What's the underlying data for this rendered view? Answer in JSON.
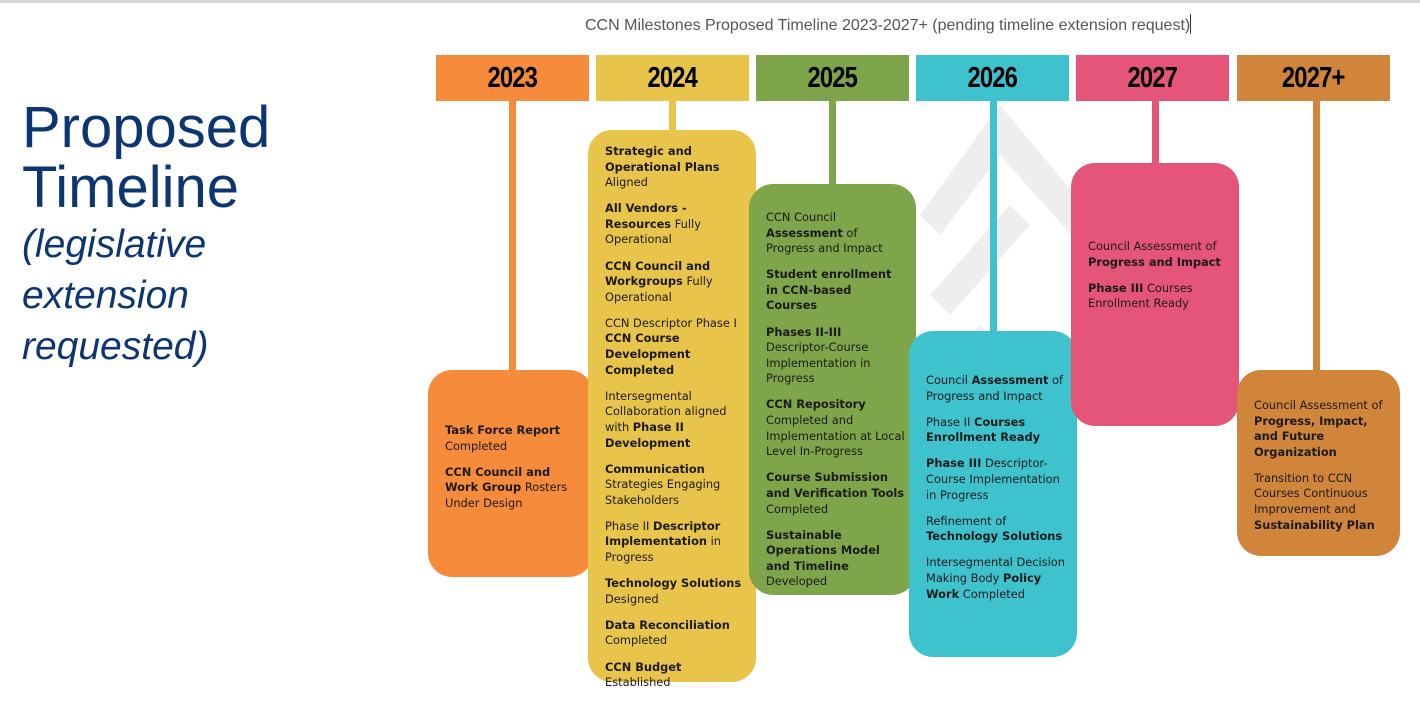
{
  "slide": {
    "title_line1": "Proposed",
    "title_line2": "Timeline",
    "subtitle_line1": "(legislative",
    "subtitle_line2": "extension",
    "subtitle_line3": "requested)",
    "chart_title": "CCN Milestones Proposed Timeline 2023-2027+ (pending timeline extension request)"
  },
  "columns": [
    {
      "year": "2023",
      "color": "#F68B3C",
      "items": [
        [
          {
            "t": "Task Force Report",
            "b": true
          },
          {
            "t": " Completed"
          }
        ],
        [
          {
            "t": "CCN Council and Work Group",
            "b": true
          },
          {
            "t": " Rosters Under Design"
          }
        ]
      ]
    },
    {
      "year": "2024",
      "color": "#E9C44A",
      "items": [
        [
          {
            "t": "Strategic and Operational Plans",
            "b": true
          },
          {
            "t": " Aligned"
          }
        ],
        [
          {
            "t": "All Vendors - Resources",
            "b": true
          },
          {
            "t": " Fully Operational"
          }
        ],
        [
          {
            "t": "CCN Council and Workgroups",
            "b": true
          },
          {
            "t": " Fully Operational"
          }
        ],
        [
          {
            "t": "CCN Descriptor Phase I "
          },
          {
            "t": "CCN Course Development Completed",
            "b": true
          }
        ],
        [
          {
            "t": "Intersegmental Collaboration aligned with "
          },
          {
            "t": "Phase II Development",
            "b": true
          }
        ],
        [
          {
            "t": "Communication",
            "b": true
          },
          {
            "t": " Strategies Engaging Stakeholders"
          }
        ],
        [
          {
            "t": "Phase II "
          },
          {
            "t": "Descriptor Implementation",
            "b": true
          },
          {
            "t": " in Progress"
          }
        ],
        [
          {
            "t": "Technology Solutions",
            "b": true
          },
          {
            "t": " Designed"
          }
        ],
        [
          {
            "t": "Data Reconciliation",
            "b": true
          },
          {
            "t": " Completed"
          }
        ],
        [
          {
            "t": "CCN Budget",
            "b": true
          },
          {
            "t": " Established"
          }
        ]
      ]
    },
    {
      "year": "2025",
      "color": "#7FA54A",
      "items": [
        [
          {
            "t": "CCN Council "
          },
          {
            "t": "Assessment",
            "b": true
          },
          {
            "t": " of Progress and Impact"
          }
        ],
        [
          {
            "t": "Student enrollment in CCN-based Courses",
            "b": true
          }
        ],
        [
          {
            "t": "Phases II-III",
            "b": true
          },
          {
            "t": " Descriptor-Course Implementation  in Progress"
          }
        ],
        [
          {
            "t": "CCN Repository",
            "b": true
          },
          {
            "t": " Completed and Implementation at Local Level In-Progress"
          }
        ],
        [
          {
            "t": "Course Submission and Verification Tools",
            "b": true
          },
          {
            "t": " Completed"
          }
        ],
        [
          {
            "t": "Sustainable Operations Model and Timeline",
            "b": true
          },
          {
            "t": " Developed"
          }
        ]
      ]
    },
    {
      "year": "2026",
      "color": "#3EC3CE",
      "items": [
        [
          {
            "t": "Council "
          },
          {
            "t": "Assessment",
            "b": true
          },
          {
            "t": " of Progress and Impact"
          }
        ],
        [
          {
            "t": "Phase II "
          },
          {
            "t": "Courses Enrollment Ready",
            "b": true
          }
        ],
        [
          {
            "t": "Phase III",
            "b": true
          },
          {
            "t": " Descriptor-Course Implementation in Progress"
          }
        ],
        [
          {
            "t": "Refinement of "
          },
          {
            "t": "Technology Solutions",
            "b": true
          }
        ],
        [
          {
            "t": "Intersegmental Decision Making Body "
          },
          {
            "t": "Policy Work",
            "b": true
          },
          {
            "t": " Completed"
          }
        ]
      ]
    },
    {
      "year": "2027",
      "color": "#E5557A",
      "items": [
        [
          {
            "t": "Council Assessment of "
          },
          {
            "t": "Progress and Impact",
            "b": true
          }
        ],
        [
          {
            "t": "Phase III",
            "b": true
          },
          {
            "t": " Courses Enrollment Ready"
          }
        ]
      ]
    },
    {
      "year": "2027+",
      "color": "#D0853B",
      "items": [
        [
          {
            "t": "Council Assessment of "
          },
          {
            "t": "Progress, Impact, and Future Organization",
            "b": true
          }
        ],
        [
          {
            "t": "Transition to CCN Courses Continuous Improvement and "
          },
          {
            "t": "Sustainability Plan",
            "b": true
          }
        ]
      ]
    }
  ]
}
